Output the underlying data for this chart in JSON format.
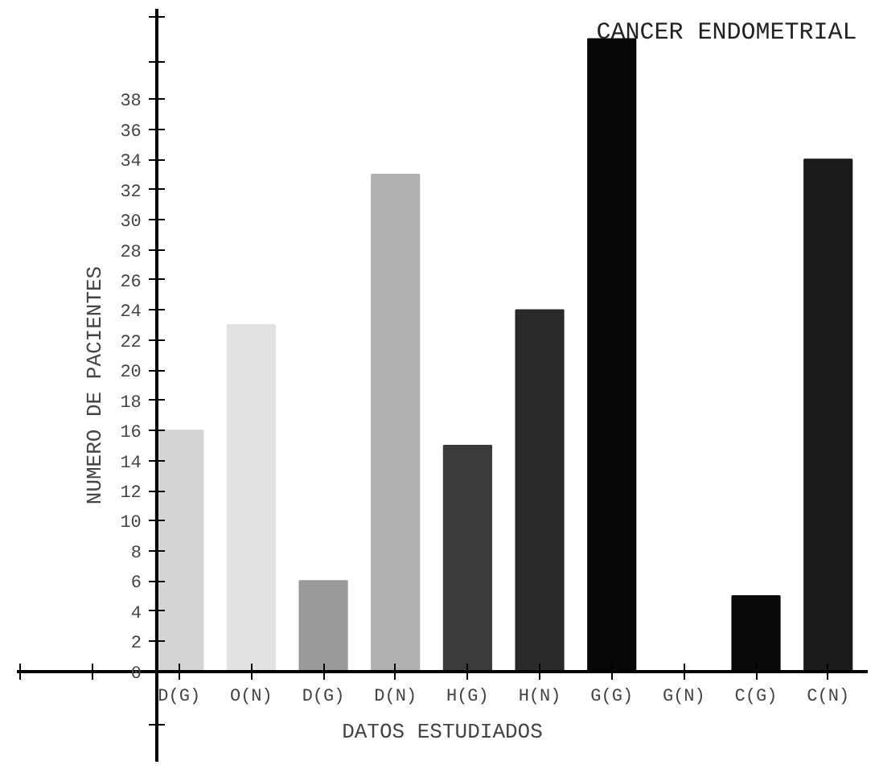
{
  "chart_data": {
    "type": "bar",
    "title": "CANCER ENDOMETRIAL",
    "xlabel": "DATOS ESTUDIADOS",
    "ylabel": "NUMERO DE PACIENTES",
    "categories": [
      "D(G)",
      "O(N)",
      "D(G)",
      "D(N)",
      "H(G)",
      "H(N)",
      "G(G)",
      "G(N)",
      "C(G)",
      "C(N)"
    ],
    "values": [
      16,
      23,
      6,
      33,
      15,
      24,
      42,
      0,
      5,
      34
    ],
    "colors": [
      "#d4d4d4",
      "#e2e2e2",
      "#9a9a9a",
      "#b0b0b0",
      "#3a3a3a",
      "#2a2a2a",
      "#080808",
      "#ffffff",
      "#0a0a0a",
      "#1a1a1a"
    ],
    "ylim": [
      -6,
      44
    ],
    "yticks": [
      {
        "value": -3.5,
        "label": null
      },
      0,
      2,
      4,
      6,
      8,
      10,
      12,
      14,
      16,
      18,
      20,
      22,
      24,
      26,
      28,
      30,
      32,
      34,
      36,
      38,
      {
        "value": 40.5,
        "label": null
      },
      {
        "value": 43.5,
        "label": null
      }
    ],
    "grid": false
  }
}
